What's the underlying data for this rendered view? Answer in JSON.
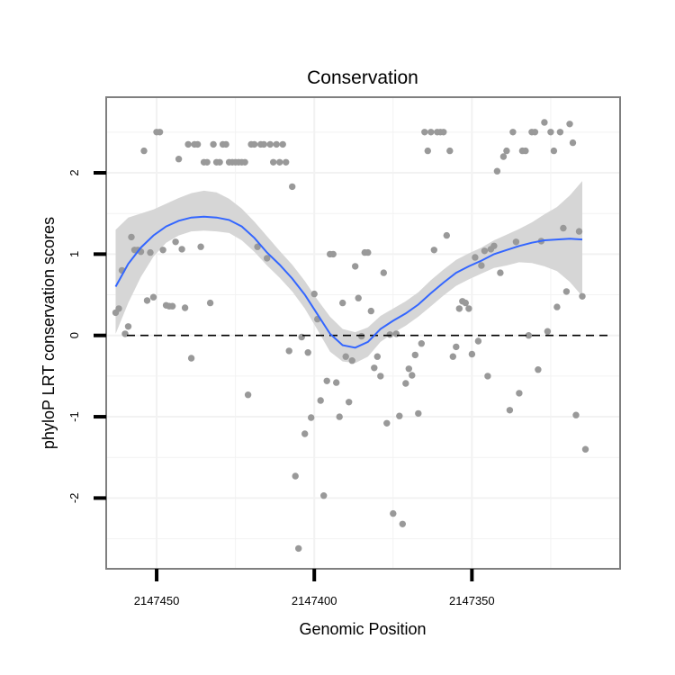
{
  "chart_data": {
    "type": "scatter",
    "title": "Conservation",
    "xlabel": "Genomic Position",
    "ylabel": "phyloP LRT conservation scores",
    "x_reversed": true,
    "xlim": [
      2147466,
      2147303
    ],
    "ylim": [
      -2.87,
      2.93
    ],
    "x_ticks": [
      2147450,
      2147400,
      2147350
    ],
    "x_tick_labels": [
      "2147450",
      "2147400",
      "2147350"
    ],
    "y_ticks": [
      -2,
      -1,
      0,
      1,
      2
    ],
    "y_tick_labels": [
      "-2",
      "-1",
      "0",
      "1",
      "2"
    ],
    "reference_line": {
      "y": 0,
      "style": "dashed"
    },
    "grid": true,
    "colors": {
      "points": "#999999",
      "smooth_line": "#3366FF",
      "confidence_band": "#D6D6D6",
      "panel_border": "#7F7F7F",
      "grid": "#F2F2F2"
    },
    "series": [
      {
        "name": "scores",
        "points": [
          [
            2147463,
            0.28
          ],
          [
            2147462,
            0.33
          ],
          [
            2147461,
            0.8
          ],
          [
            2147460,
            0.02
          ],
          [
            2147459,
            0.11
          ],
          [
            2147458,
            1.21
          ],
          [
            2147457,
            1.05
          ],
          [
            2147456,
            1.05
          ],
          [
            2147455,
            1.03
          ],
          [
            2147454,
            2.27
          ],
          [
            2147453,
            0.43
          ],
          [
            2147452,
            1.02
          ],
          [
            2147451,
            0.47
          ],
          [
            2147450,
            2.5
          ],
          [
            2147449,
            2.5
          ],
          [
            2147448,
            1.05
          ],
          [
            2147447,
            0.37
          ],
          [
            2147446,
            0.36
          ],
          [
            2147445,
            0.36
          ],
          [
            2147444,
            1.15
          ],
          [
            2147443,
            2.17
          ],
          [
            2147442,
            1.06
          ],
          [
            2147441,
            0.34
          ],
          [
            2147440,
            2.35
          ],
          [
            2147439,
            -0.28
          ],
          [
            2147438,
            2.35
          ],
          [
            2147437,
            2.35
          ],
          [
            2147436,
            1.09
          ],
          [
            2147435,
            2.13
          ],
          [
            2147434,
            2.13
          ],
          [
            2147433,
            0.4
          ],
          [
            2147432,
            2.35
          ],
          [
            2147431,
            2.13
          ],
          [
            2147430,
            2.13
          ],
          [
            2147429,
            2.35
          ],
          [
            2147428,
            2.35
          ],
          [
            2147427,
            2.13
          ],
          [
            2147426,
            2.13
          ],
          [
            2147425,
            2.13
          ],
          [
            2147424,
            2.13
          ],
          [
            2147423,
            2.13
          ],
          [
            2147422,
            2.13
          ],
          [
            2147421,
            -0.73
          ],
          [
            2147420,
            2.35
          ],
          [
            2147419,
            2.35
          ],
          [
            2147418,
            1.09
          ],
          [
            2147417,
            2.35
          ],
          [
            2147416,
            2.35
          ],
          [
            2147415,
            0.95
          ],
          [
            2147414,
            2.35
          ],
          [
            2147413,
            2.13
          ],
          [
            2147412,
            2.35
          ],
          [
            2147411,
            2.13
          ],
          [
            2147410,
            2.35
          ],
          [
            2147409,
            2.13
          ],
          [
            2147408,
            -0.19
          ],
          [
            2147407,
            1.83
          ],
          [
            2147406,
            -1.73
          ],
          [
            2147405,
            -2.62
          ],
          [
            2147404,
            -0.02
          ],
          [
            2147403,
            -1.21
          ],
          [
            2147402,
            -0.21
          ],
          [
            2147401,
            -1.01
          ],
          [
            2147400,
            0.51
          ],
          [
            2147399,
            0.2
          ],
          [
            2147398,
            -0.8
          ],
          [
            2147397,
            -1.97
          ],
          [
            2147396,
            -0.56
          ],
          [
            2147395,
            1.0
          ],
          [
            2147394,
            1.0
          ],
          [
            2147393,
            -0.58
          ],
          [
            2147392,
            -1.0
          ],
          [
            2147391,
            0.4
          ],
          [
            2147390,
            -0.26
          ],
          [
            2147389,
            -0.82
          ],
          [
            2147388,
            -0.31
          ],
          [
            2147387,
            0.85
          ],
          [
            2147386,
            0.46
          ],
          [
            2147385,
            -0.01
          ],
          [
            2147384,
            1.02
          ],
          [
            2147383,
            1.02
          ],
          [
            2147382,
            0.3
          ],
          [
            2147381,
            -0.4
          ],
          [
            2147380,
            -0.26
          ],
          [
            2147379,
            -0.5
          ],
          [
            2147378,
            0.77
          ],
          [
            2147377,
            -1.08
          ],
          [
            2147376,
            0.01
          ],
          [
            2147375,
            -2.19
          ],
          [
            2147374,
            0.02
          ],
          [
            2147373,
            -0.99
          ],
          [
            2147372,
            -2.32
          ],
          [
            2147371,
            -0.59
          ],
          [
            2147370,
            -0.41
          ],
          [
            2147369,
            -0.49
          ],
          [
            2147368,
            -0.24
          ],
          [
            2147367,
            -0.96
          ],
          [
            2147366,
            -0.1
          ],
          [
            2147365,
            2.5
          ],
          [
            2147364,
            2.27
          ],
          [
            2147363,
            2.5
          ],
          [
            2147362,
            1.05
          ],
          [
            2147361,
            2.5
          ],
          [
            2147360,
            2.5
          ],
          [
            2147359,
            2.5
          ],
          [
            2147358,
            1.23
          ],
          [
            2147357,
            2.27
          ],
          [
            2147356,
            -0.26
          ],
          [
            2147355,
            -0.14
          ],
          [
            2147354,
            0.33
          ],
          [
            2147353,
            0.42
          ],
          [
            2147352,
            0.4
          ],
          [
            2147351,
            0.33
          ],
          [
            2147350,
            -0.23
          ],
          [
            2147349,
            0.96
          ],
          [
            2147348,
            -0.07
          ],
          [
            2147347,
            0.86
          ],
          [
            2147346,
            1.04
          ],
          [
            2147345,
            -0.5
          ],
          [
            2147344,
            1.06
          ],
          [
            2147343,
            1.1
          ],
          [
            2147342,
            2.02
          ],
          [
            2147341,
            0.77
          ],
          [
            2147340,
            2.2
          ],
          [
            2147339,
            2.27
          ],
          [
            2147338,
            -0.92
          ],
          [
            2147337,
            2.5
          ],
          [
            2147336,
            1.15
          ],
          [
            2147335,
            -0.71
          ],
          [
            2147334,
            2.27
          ],
          [
            2147333,
            2.27
          ],
          [
            2147332,
            0.0
          ],
          [
            2147331,
            2.5
          ],
          [
            2147330,
            2.5
          ],
          [
            2147329,
            -0.42
          ],
          [
            2147328,
            1.16
          ],
          [
            2147327,
            2.62
          ],
          [
            2147326,
            0.05
          ],
          [
            2147325,
            2.5
          ],
          [
            2147324,
            2.27
          ],
          [
            2147323,
            0.35
          ],
          [
            2147322,
            2.5
          ],
          [
            2147321,
            1.32
          ],
          [
            2147320,
            0.54
          ],
          [
            2147319,
            2.6
          ],
          [
            2147318,
            2.37
          ],
          [
            2147317,
            -0.98
          ],
          [
            2147316,
            1.28
          ],
          [
            2147315,
            0.48
          ],
          [
            2147314,
            -1.4
          ]
        ]
      }
    ],
    "smooth": {
      "x": [
        2147463,
        2147459,
        2147455,
        2147451,
        2147447,
        2147443,
        2147439,
        2147435,
        2147431,
        2147427,
        2147423,
        2147419,
        2147415,
        2147411,
        2147407,
        2147403,
        2147399,
        2147395,
        2147391,
        2147387,
        2147383,
        2147379,
        2147375,
        2147371,
        2147367,
        2147363,
        2147359,
        2147355,
        2147351,
        2147347,
        2147343,
        2147339,
        2147335,
        2147331,
        2147327,
        2147323,
        2147319,
        2147315
      ],
      "y": [
        0.6,
        0.88,
        1.08,
        1.23,
        1.34,
        1.41,
        1.45,
        1.46,
        1.45,
        1.42,
        1.34,
        1.2,
        1.02,
        0.87,
        0.7,
        0.5,
        0.26,
        0.02,
        -0.12,
        -0.15,
        -0.08,
        0.08,
        0.18,
        0.27,
        0.38,
        0.52,
        0.65,
        0.77,
        0.85,
        0.92,
        1.0,
        1.05,
        1.1,
        1.14,
        1.17,
        1.18,
        1.19,
        1.18
      ],
      "lower": [
        0.02,
        0.4,
        0.72,
        0.97,
        1.14,
        1.23,
        1.28,
        1.29,
        1.28,
        1.26,
        1.17,
        1.03,
        0.86,
        0.71,
        0.54,
        0.33,
        0.07,
        -0.2,
        -0.32,
        -0.34,
        -0.26,
        -0.08,
        0.03,
        0.12,
        0.23,
        0.36,
        0.49,
        0.61,
        0.69,
        0.76,
        0.83,
        0.86,
        0.9,
        0.89,
        0.85,
        0.79,
        0.66,
        0.48
      ],
      "upper": [
        1.3,
        1.45,
        1.5,
        1.55,
        1.62,
        1.69,
        1.75,
        1.78,
        1.76,
        1.68,
        1.56,
        1.4,
        1.22,
        1.04,
        0.87,
        0.67,
        0.44,
        0.23,
        0.08,
        0.04,
        0.1,
        0.24,
        0.33,
        0.42,
        0.53,
        0.68,
        0.81,
        0.93,
        1.01,
        1.08,
        1.17,
        1.24,
        1.31,
        1.39,
        1.49,
        1.58,
        1.72,
        1.9
      ]
    }
  }
}
